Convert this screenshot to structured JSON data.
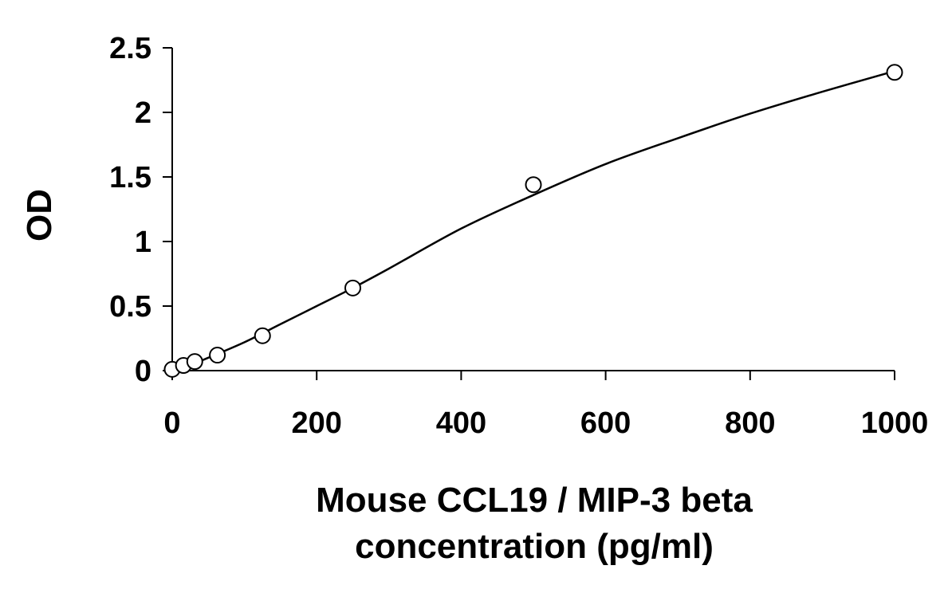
{
  "chart_data": {
    "type": "scatter",
    "xlabel_lines": [
      "Mouse CCL19 / MIP-3 beta",
      "concentration (pg/ml)"
    ],
    "ylabel": "OD",
    "xlim": [
      0,
      1000
    ],
    "ylim": [
      0,
      2.5
    ],
    "x_ticks": [
      0,
      200,
      400,
      600,
      800,
      1000
    ],
    "y_ticks": [
      0,
      0.5,
      1,
      1.5,
      2,
      2.5
    ],
    "x_tick_labels": [
      "0",
      "200",
      "400",
      "600",
      "800",
      "1000"
    ],
    "y_tick_labels": [
      "0",
      "0.5",
      "1",
      "1.5",
      "2",
      "2.5"
    ],
    "grid": false,
    "series": [
      {
        "marker": "open-circle",
        "x": [
          0,
          15.6,
          31.2,
          62.5,
          125,
          250,
          500,
          1000
        ],
        "y": [
          0.01,
          0.04,
          0.07,
          0.12,
          0.27,
          0.64,
          1.44,
          2.31
        ]
      }
    ],
    "fit_curve": {
      "x": [
        15,
        50,
        100,
        150,
        200,
        250,
        300,
        400,
        500,
        600,
        700,
        800,
        900,
        1000
      ],
      "y": [
        0.02,
        0.1,
        0.22,
        0.36,
        0.5,
        0.64,
        0.79,
        1.1,
        1.36,
        1.6,
        1.8,
        1.99,
        2.16,
        2.32
      ]
    },
    "colors": {
      "axis": "#000000",
      "marker_stroke": "#000000",
      "marker_fill": "#ffffff",
      "curve": "#000000"
    }
  }
}
